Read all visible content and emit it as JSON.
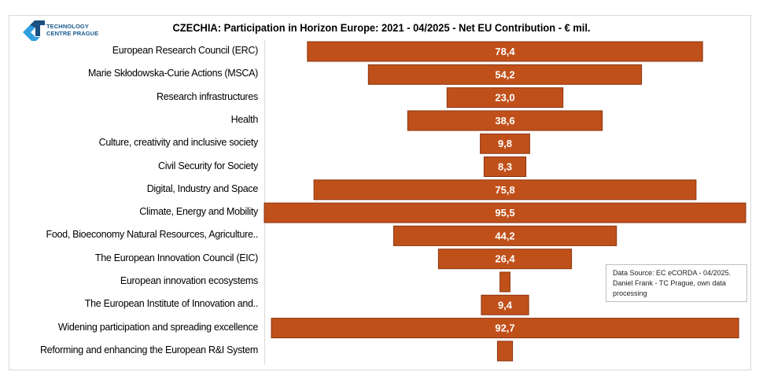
{
  "logo": {
    "line1": "TECHNOLOGY",
    "line2": "CENTRE PRAGUE",
    "colors": {
      "dark": "#1a4f7f",
      "light": "#2f9fe0"
    }
  },
  "chart_data": {
    "type": "bar",
    "orientation": "horizontal-centered (funnel)",
    "title": "CZECHIA: Participation in Horizon Europe: 2021 - 04/2025  - Net EU Contribution  - € mil.",
    "xlabel": "",
    "ylabel": "",
    "unit": "€ mil.",
    "bar_color": "#c0501a",
    "bar_border_color": "#8a3510",
    "label_color": "#ffffff",
    "grid": false,
    "legend": "none",
    "categories": [
      "European Research Council (ERC)",
      "Marie Skłodowska-Curie Actions (MSCA)",
      "Research infrastructures",
      "Health",
      "Culture, creativity and inclusive society",
      "Civil Security for Society",
      "Digital, Industry and Space",
      "Climate, Energy and Mobility",
      "Food, Bioeconomy Natural Resources, Agriculture..",
      "The European Innovation Council (EIC)",
      "European innovation ecosystems",
      "The European Institute of Innovation and..",
      "Widening participation and spreading excellence",
      "Reforming and enhancing the European R&I System"
    ],
    "values": [
      78.4,
      54.2,
      23.0,
      38.6,
      9.8,
      8.3,
      75.8,
      95.5,
      44.2,
      26.4,
      2.0,
      9.4,
      92.7,
      3.0
    ],
    "data_labels": [
      "78,4",
      "54,2",
      "23,0",
      "38,6",
      "9,8",
      "8,3",
      "75,8",
      "95,5",
      "44,2",
      "26,4",
      "",
      "9,4",
      "92,7",
      ""
    ],
    "xlim": [
      0,
      95.5
    ]
  },
  "note": {
    "text_line1": "Data Source: EC eCORDA - 04/2025.",
    "text_line2": "Daniel Frank - TC Prague, own data",
    "text_line3": "processing"
  }
}
